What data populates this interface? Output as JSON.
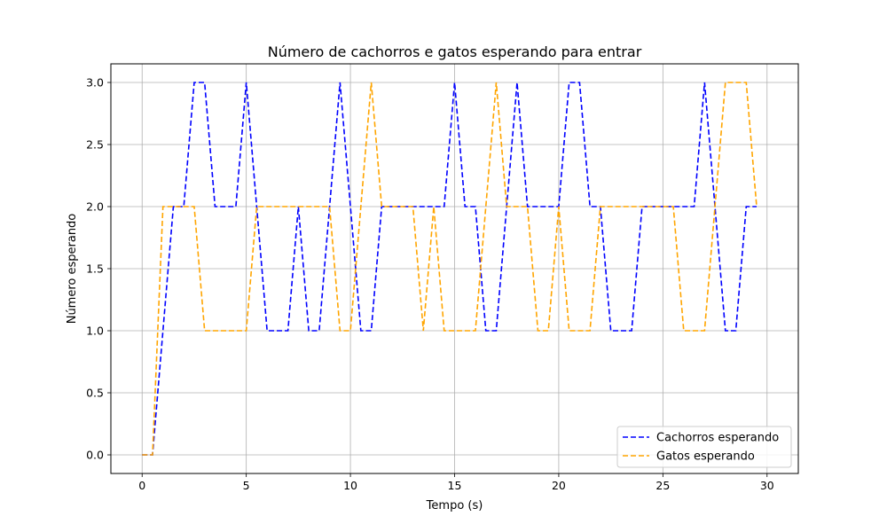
{
  "chart_data": {
    "type": "line",
    "title": "Número de cachorros e gatos esperando para entrar",
    "xlabel": "Tempo (s)",
    "ylabel": "Número esperando",
    "xlim": [
      -1.5,
      31.5
    ],
    "ylim": [
      -0.15,
      3.15
    ],
    "xticks": [
      0,
      5,
      10,
      15,
      20,
      25,
      30
    ],
    "yticks": [
      0.0,
      0.5,
      1.0,
      1.5,
      2.0,
      2.5,
      3.0
    ],
    "xtick_labels": [
      "0",
      "5",
      "10",
      "15",
      "20",
      "25",
      "30"
    ],
    "ytick_labels": [
      "0.0",
      "0.5",
      "1.0",
      "1.5",
      "2.0",
      "2.5",
      "3.0"
    ],
    "grid": true,
    "legend_position": "lower-right",
    "line_style": "dashed",
    "x": [
      0,
      0.5,
      1,
      1.5,
      2,
      2.5,
      3,
      3.5,
      4,
      4.5,
      5,
      5.5,
      6,
      6.5,
      7,
      7.5,
      8,
      8.5,
      9,
      9.5,
      10,
      10.5,
      11,
      11.5,
      12,
      12.5,
      13,
      13.5,
      14,
      14.5,
      15,
      15.5,
      16,
      16.5,
      17,
      17.5,
      18,
      18.5,
      19,
      19.5,
      20,
      20.5,
      21,
      21.5,
      22,
      22.5,
      23,
      23.5,
      24,
      24.5,
      25,
      25.5,
      26,
      26.5,
      27,
      27.5,
      28,
      28.5,
      29,
      29.5
    ],
    "series": [
      {
        "name": "Cachorros esperando",
        "color": "#0000ff",
        "values": [
          0,
          0,
          1,
          2,
          2,
          3,
          3,
          2,
          2,
          2,
          3,
          2,
          1,
          1,
          1,
          2,
          1,
          1,
          2,
          3,
          2,
          1,
          1,
          2,
          2,
          2,
          2,
          2,
          2,
          2,
          3,
          2,
          2,
          1,
          1,
          2,
          3,
          2,
          2,
          2,
          2,
          3,
          3,
          2,
          2,
          1,
          1,
          1,
          2,
          2,
          2,
          2,
          2,
          2,
          3,
          2,
          1,
          1,
          2,
          2
        ]
      },
      {
        "name": "Gatos esperando",
        "color": "#ffa500",
        "values": [
          0,
          0,
          2,
          2,
          2,
          2,
          1,
          1,
          1,
          1,
          1,
          2,
          2,
          2,
          2,
          2,
          2,
          2,
          2,
          1,
          1,
          2,
          3,
          2,
          2,
          2,
          2,
          1,
          2,
          1,
          1,
          1,
          1,
          2,
          3,
          2,
          2,
          2,
          1,
          1,
          2,
          1,
          1,
          1,
          2,
          2,
          2,
          2,
          2,
          2,
          2,
          2,
          1,
          1,
          1,
          2,
          3,
          3,
          3,
          2
        ]
      }
    ]
  }
}
